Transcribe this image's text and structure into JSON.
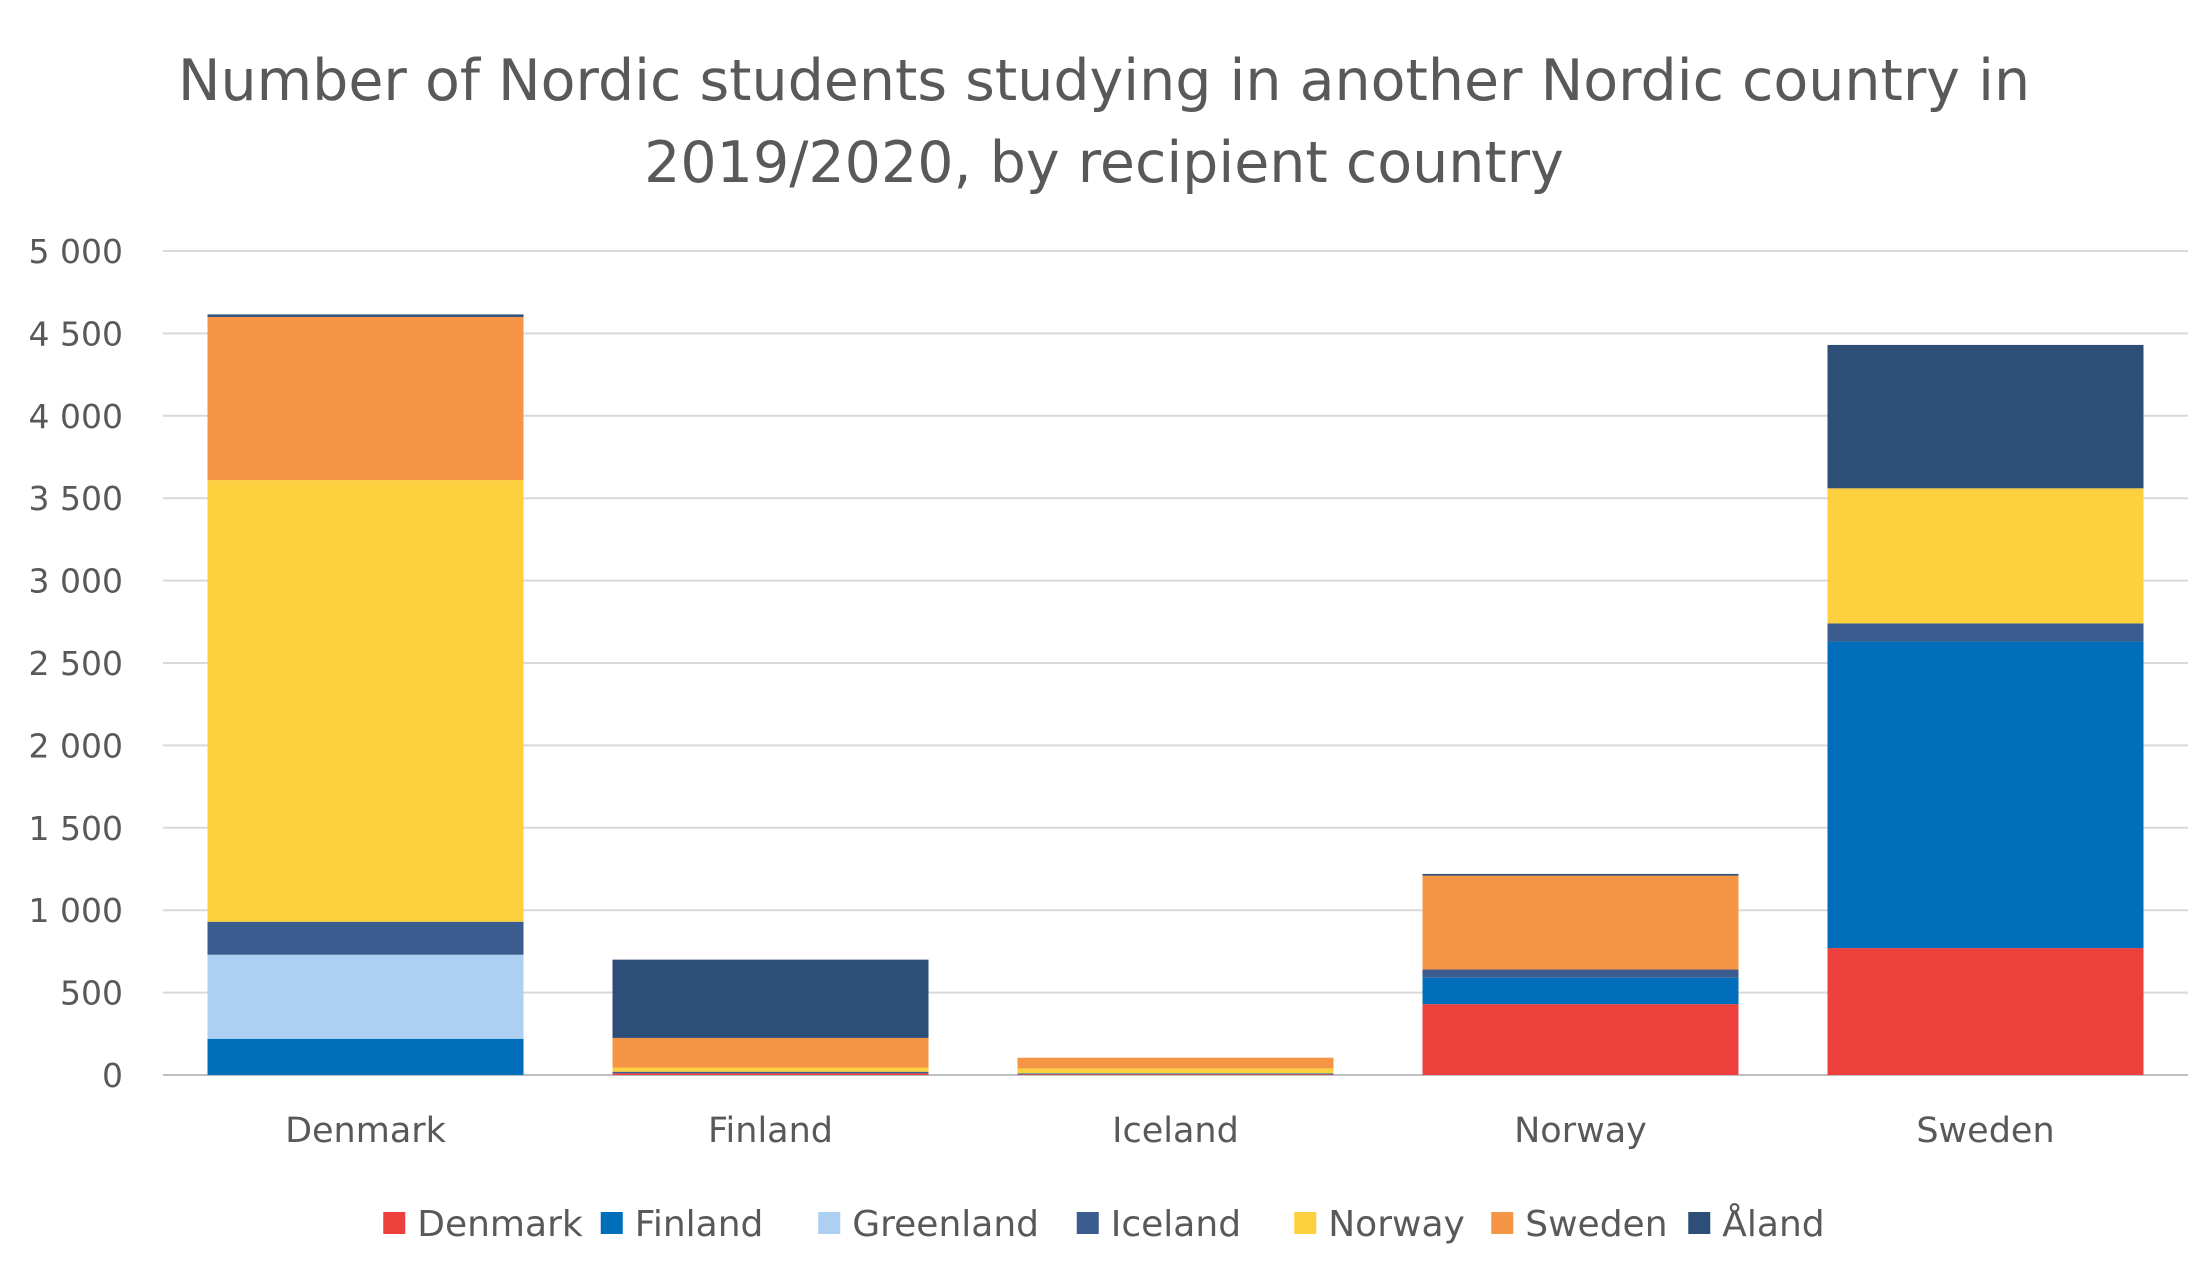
{
  "chart_data": {
    "type": "bar",
    "stacked": true,
    "title_lines": [
      "Number of Nordic students studying in another Nordic country in",
      "2019/2020, by recipient country"
    ],
    "xlabel": "",
    "ylabel": "",
    "ylim": [
      0,
      5000
    ],
    "yticks": [
      0,
      500,
      1000,
      1500,
      2000,
      2500,
      3000,
      3500,
      4000,
      4500,
      5000
    ],
    "ytick_labels": [
      "0",
      "500",
      "1 000",
      "1 500",
      "2 000",
      "2 500",
      "3 000",
      "3 500",
      "4 000",
      "4 500",
      "5 000"
    ],
    "grid": true,
    "legend_position": "bottom",
    "categories": [
      "Denmark",
      "Finland",
      "Iceland",
      "Norway",
      "Sweden"
    ],
    "series": [
      {
        "name": "Denmark",
        "color": "#ED403C",
        "values": [
          0,
          10,
          5,
          430,
          770
        ]
      },
      {
        "name": "Finland",
        "color": "#006EBA",
        "values": [
          220,
          0,
          5,
          160,
          1860
        ]
      },
      {
        "name": "Greenland",
        "color": "#ADCFF2",
        "values": [
          510,
          0,
          0,
          0,
          0
        ]
      },
      {
        "name": "Iceland",
        "color": "#3A5C8F",
        "values": [
          200,
          10,
          0,
          50,
          110
        ]
      },
      {
        "name": "Norway",
        "color": "#FDD03F",
        "values": [
          2680,
          25,
          30,
          0,
          820
        ]
      },
      {
        "name": "Sweden",
        "color": "#F59646",
        "values": [
          990,
          180,
          65,
          570,
          0
        ]
      },
      {
        "name": "Åland",
        "color": "#2D4E76",
        "values": [
          15,
          475,
          0,
          10,
          870
        ]
      }
    ]
  }
}
